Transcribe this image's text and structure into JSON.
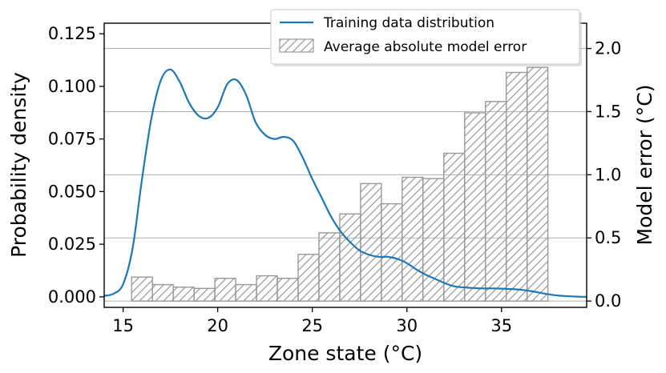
{
  "chart_data": {
    "type": "bar+line",
    "title": "",
    "xlabel": "Zone state (°C)",
    "ylabel_left": "Probability density",
    "ylabel_right": "Model error (°C)",
    "xlim": [
      14,
      39.5
    ],
    "ylim_left": [
      -0.005,
      0.13
    ],
    "ylim_right": [
      -0.05,
      2.2
    ],
    "x_ticks": [
      "15",
      "20",
      "25",
      "30",
      "35"
    ],
    "y_left_ticks": [
      "0.000",
      "0.025",
      "0.050",
      "0.075",
      "0.100",
      "0.125"
    ],
    "y_right_ticks": [
      "0.0",
      "0.5",
      "1.0",
      "1.5",
      "2.0"
    ],
    "grid": "horizontal, right axis",
    "legend_position": "top-right",
    "series": [
      {
        "name": "Training data distribution",
        "type": "line",
        "axis": "left",
        "color": "#1f77b4",
        "x": [
          14.0,
          14.5,
          15.0,
          15.5,
          16.0,
          16.5,
          17.0,
          17.5,
          18.0,
          18.5,
          19.0,
          19.5,
          20.0,
          20.5,
          21.0,
          21.5,
          22.0,
          22.5,
          23.0,
          23.5,
          24.0,
          24.5,
          25.0,
          25.5,
          26.0,
          26.5,
          27.0,
          27.5,
          28.0,
          28.5,
          29.0,
          29.5,
          30.0,
          30.5,
          31.0,
          31.5,
          32.0,
          32.5,
          33.0,
          33.5,
          34.0,
          34.5,
          35.0,
          35.5,
          36.0,
          36.5,
          37.0,
          37.5,
          38.0,
          38.5,
          39.0,
          39.5
        ],
        "y": [
          0.0005,
          0.0015,
          0.006,
          0.023,
          0.056,
          0.085,
          0.103,
          0.108,
          0.102,
          0.092,
          0.086,
          0.085,
          0.09,
          0.101,
          0.103,
          0.096,
          0.083,
          0.077,
          0.075,
          0.076,
          0.074,
          0.066,
          0.056,
          0.047,
          0.038,
          0.031,
          0.026,
          0.022,
          0.02,
          0.019,
          0.019,
          0.018,
          0.016,
          0.013,
          0.0105,
          0.0085,
          0.0065,
          0.005,
          0.0045,
          0.0042,
          0.004,
          0.004,
          0.0039,
          0.0037,
          0.0034,
          0.0028,
          0.002,
          0.0012,
          0.0006,
          0.0003,
          0.0001,
          0.0
        ]
      },
      {
        "name": "Average absolute model error",
        "type": "bar",
        "axis": "right",
        "bin_width": 1.1,
        "bin_centers": [
          16.0,
          17.1,
          18.2,
          19.3,
          20.4,
          21.5,
          22.6,
          23.7,
          24.8,
          25.9,
          27.0,
          28.1,
          29.2,
          30.3,
          31.4,
          32.5,
          33.6,
          34.7,
          35.8,
          36.9
        ],
        "values": [
          0.19,
          0.13,
          0.11,
          0.1,
          0.18,
          0.13,
          0.2,
          0.18,
          0.37,
          0.54,
          0.69,
          0.93,
          0.77,
          0.98,
          0.97,
          1.17,
          1.49,
          1.58,
          1.81,
          1.85
        ]
      }
    ]
  }
}
